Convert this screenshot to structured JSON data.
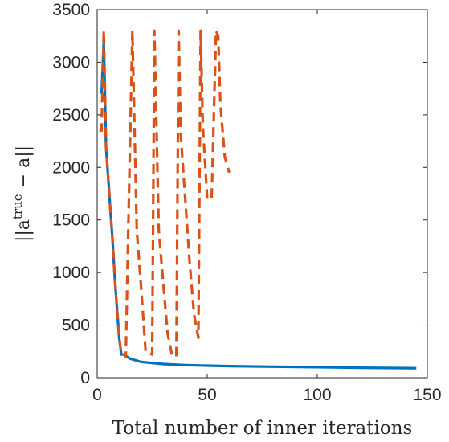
{
  "chart_data": {
    "type": "line",
    "title": "",
    "xlabel": "Total number of inner iterations",
    "ylabel": {
      "prefix": "||a",
      "superscript": "true",
      "suffix": " − a||"
    },
    "xlim": [
      0,
      150
    ],
    "ylim": [
      0,
      3500
    ],
    "xticks": [
      0,
      50,
      100,
      150
    ],
    "yticks": [
      0,
      500,
      1000,
      1500,
      2000,
      2500,
      3000,
      3500
    ],
    "grid": false,
    "legend": "none",
    "series": [
      {
        "color": "#0072BD",
        "style": "solid",
        "x": [
          2,
          3,
          4,
          5,
          6,
          7,
          8,
          9,
          10,
          11,
          12,
          15,
          20,
          30,
          40,
          50,
          60,
          80,
          100,
          120,
          145
        ],
        "y": [
          2700,
          3200,
          2200,
          1900,
          1600,
          1300,
          950,
          650,
          380,
          220,
          220,
          180,
          150,
          130,
          120,
          115,
          110,
          105,
          100,
          95,
          90
        ]
      },
      {
        "color": "#D95319",
        "style": "dashed",
        "x": [
          1,
          2,
          3,
          4,
          5,
          6,
          7,
          8,
          9,
          10,
          11,
          12,
          13,
          14,
          16,
          18,
          20,
          22,
          24,
          25,
          26,
          28,
          30,
          32,
          34,
          36,
          37,
          38,
          40,
          42,
          44,
          46,
          47,
          48,
          50,
          52,
          54,
          55,
          56,
          58,
          60
        ],
        "y": [
          2350,
          2350,
          3300,
          2200,
          1900,
          1600,
          1300,
          950,
          650,
          380,
          220,
          220,
          200,
          1300,
          3300,
          1400,
          850,
          250,
          230,
          220,
          3300,
          1400,
          900,
          420,
          210,
          200,
          3300,
          2300,
          1700,
          1100,
          600,
          380,
          3300,
          2400,
          1700,
          1700,
          3300,
          3250,
          2600,
          2100,
          1950
        ]
      }
    ]
  }
}
